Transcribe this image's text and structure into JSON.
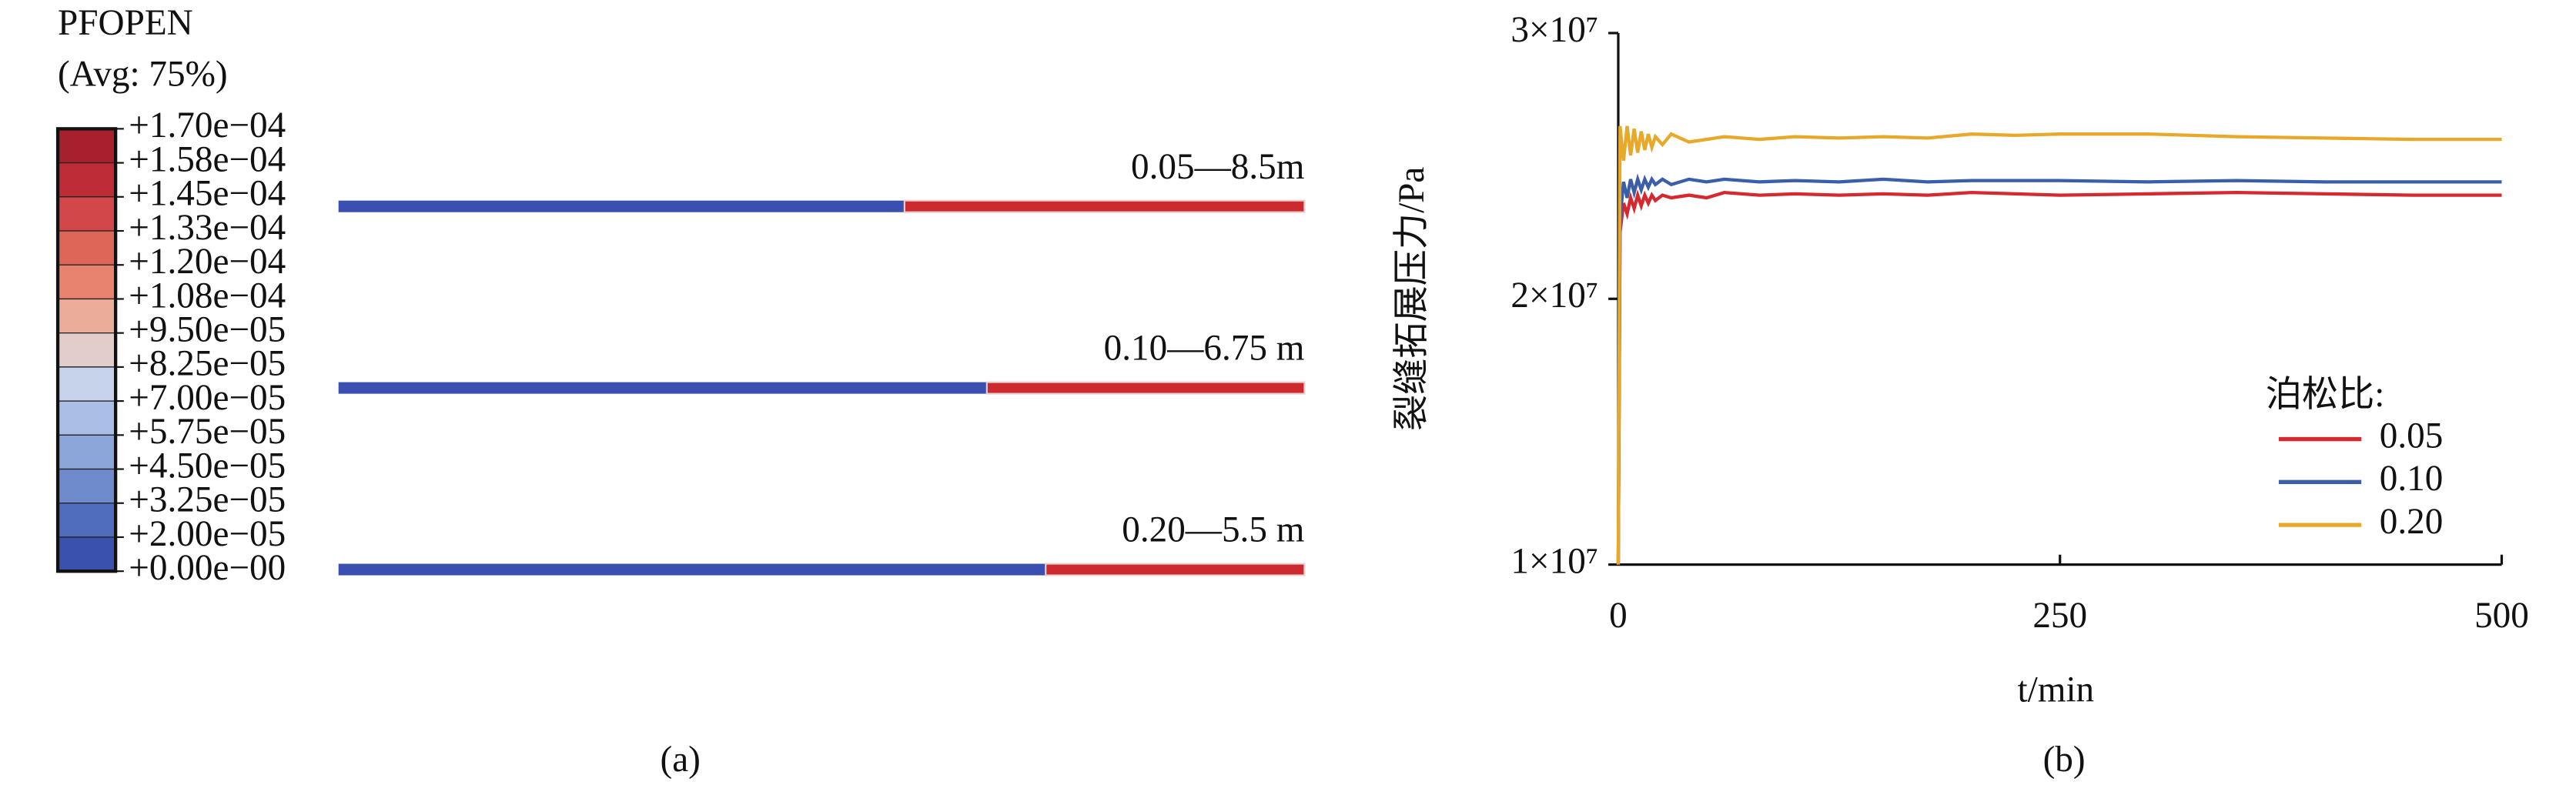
{
  "chart_data": [
    {
      "type": "contour",
      "title": "PFOPEN",
      "subtitle": "(Avg: 75%)",
      "caption": "(a)",
      "levels": [
        {
          "value": 0.00017,
          "label": "+1.70e−04"
        },
        {
          "value": 0.000158,
          "label": "+1.58e−04"
        },
        {
          "value": 0.000145,
          "label": "+1.45e−04"
        },
        {
          "value": 0.000133,
          "label": "+1.33e−04"
        },
        {
          "value": 0.00012,
          "label": "+1.20e−04"
        },
        {
          "value": 0.000108,
          "label": "+1.08e−04"
        },
        {
          "value": 9.5e-05,
          "label": "+9.50e−05"
        },
        {
          "value": 8.25e-05,
          "label": "+8.25e−05"
        },
        {
          "value": 7e-05,
          "label": "+7.00e−05"
        },
        {
          "value": 5.75e-05,
          "label": "+5.75e−05"
        },
        {
          "value": 4.5e-05,
          "label": "+4.50e−05"
        },
        {
          "value": 3.25e-05,
          "label": "+3.25e−05"
        },
        {
          "value": 2e-05,
          "label": "+2.00e−05"
        },
        {
          "value": 0,
          "label": "+0.00e−00"
        }
      ],
      "colors": [
        "#a8202e",
        "#bd2c37",
        "#d2474a",
        "#de6658",
        "#e8836f",
        "#ebac99",
        "#e2cdca",
        "#c6d3ea",
        "#a9bfe6",
        "#8ca6da",
        "#6f8bcb",
        "#506dbd",
        "#3a52ad"
      ],
      "open_color": "#cc2a2f",
      "closed_color": "#3a4fb0",
      "fractures": [
        {
          "label": "0.05—8.5m",
          "open_length": 8.5
        },
        {
          "label": "0.10—6.75 m",
          "open_length": 6.75
        },
        {
          "label": "0.20—5.5 m",
          "open_length": 5.5
        }
      ]
    },
    {
      "type": "line",
      "caption": "(b)",
      "xlabel": "t/min",
      "ylabel": "裂缝拓展压力/Pa",
      "legend_title": "泊松比:",
      "xlim": [
        0,
        500
      ],
      "xticks": [
        0,
        250,
        500
      ],
      "ylim": [
        10000000,
        30000000
      ],
      "yticks": [
        {
          "value": 10000000,
          "label": "1×10⁷"
        },
        {
          "value": 20000000,
          "label": "2×10⁷"
        },
        {
          "value": 30000000,
          "label": "3×10⁷"
        }
      ],
      "x": [
        0,
        1,
        3,
        5,
        7,
        9,
        11,
        13,
        15,
        17,
        19,
        21,
        25,
        30,
        40,
        50,
        60,
        80,
        100,
        125,
        150,
        175,
        200,
        225,
        250,
        300,
        350,
        400,
        450,
        500
      ],
      "series": [
        {
          "name": "0.05",
          "color": "#d7282f",
          "values": [
            10000000,
            22500000,
            23600000,
            23200000,
            23800000,
            23400000,
            23900000,
            23500000,
            23900000,
            23600000,
            23900000,
            23700000,
            23900000,
            23800000,
            23900000,
            23800000,
            24000000,
            23900000,
            23950000,
            23900000,
            23950000,
            23900000,
            24000000,
            23950000,
            23900000,
            23950000,
            24000000,
            23950000,
            23900000,
            23900000
          ]
        },
        {
          "name": "0.10",
          "color": "#3b5ea8",
          "values": [
            10000000,
            23000000,
            24400000,
            23800000,
            24500000,
            24000000,
            24500000,
            24100000,
            24500000,
            24200000,
            24500000,
            24300000,
            24500000,
            24300000,
            24500000,
            24400000,
            24500000,
            24400000,
            24450000,
            24400000,
            24500000,
            24400000,
            24450000,
            24450000,
            24450000,
            24400000,
            24450000,
            24400000,
            24400000,
            24400000
          ]
        },
        {
          "name": "0.20",
          "color": "#e8a92a",
          "values": [
            10000000,
            26500000,
            25200000,
            26500000,
            25400000,
            26400000,
            25500000,
            26300000,
            25600000,
            26200000,
            25700000,
            26100000,
            25800000,
            26200000,
            25900000,
            26000000,
            26100000,
            26000000,
            26100000,
            26050000,
            26100000,
            26050000,
            26200000,
            26150000,
            26200000,
            26200000,
            26100000,
            26050000,
            26000000,
            26000000
          ]
        }
      ]
    }
  ]
}
